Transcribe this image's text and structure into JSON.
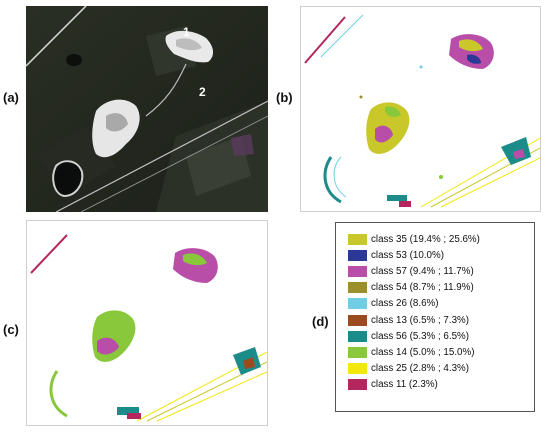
{
  "panels": {
    "a": {
      "label": "(a)",
      "markers": [
        "1",
        "2"
      ]
    },
    "b": {
      "label": "(b)"
    },
    "c": {
      "label": "(c)"
    },
    "d": {
      "label": "(d)"
    }
  },
  "legend": {
    "items": [
      {
        "text": "class 35 (19.4% ; 25.6%)",
        "color": "#c9c82a"
      },
      {
        "text": "class 53 (10.0%)",
        "color": "#2b3896"
      },
      {
        "text": "class 57 (9.4% ; 11.7%)",
        "color": "#b84ea8"
      },
      {
        "text": "class 54 (8.7% ; 11.9%)",
        "color": "#9a8f2a"
      },
      {
        "text": "class 26 (8.6%)",
        "color": "#71cde3"
      },
      {
        "text": "class 13 (6.5% ; 7.3%)",
        "color": "#9c4a1f"
      },
      {
        "text": "class 56 (5.3% ; 6.5%)",
        "color": "#1c8c8a"
      },
      {
        "text": "class 14 (5.0% ; 15.0%)",
        "color": "#88c83a"
      },
      {
        "text": "class 25 (2.8% ; 4.3%)",
        "color": "#f2e80a"
      },
      {
        "text": "class 11 (2.3%)",
        "color": "#b3275e"
      }
    ]
  }
}
